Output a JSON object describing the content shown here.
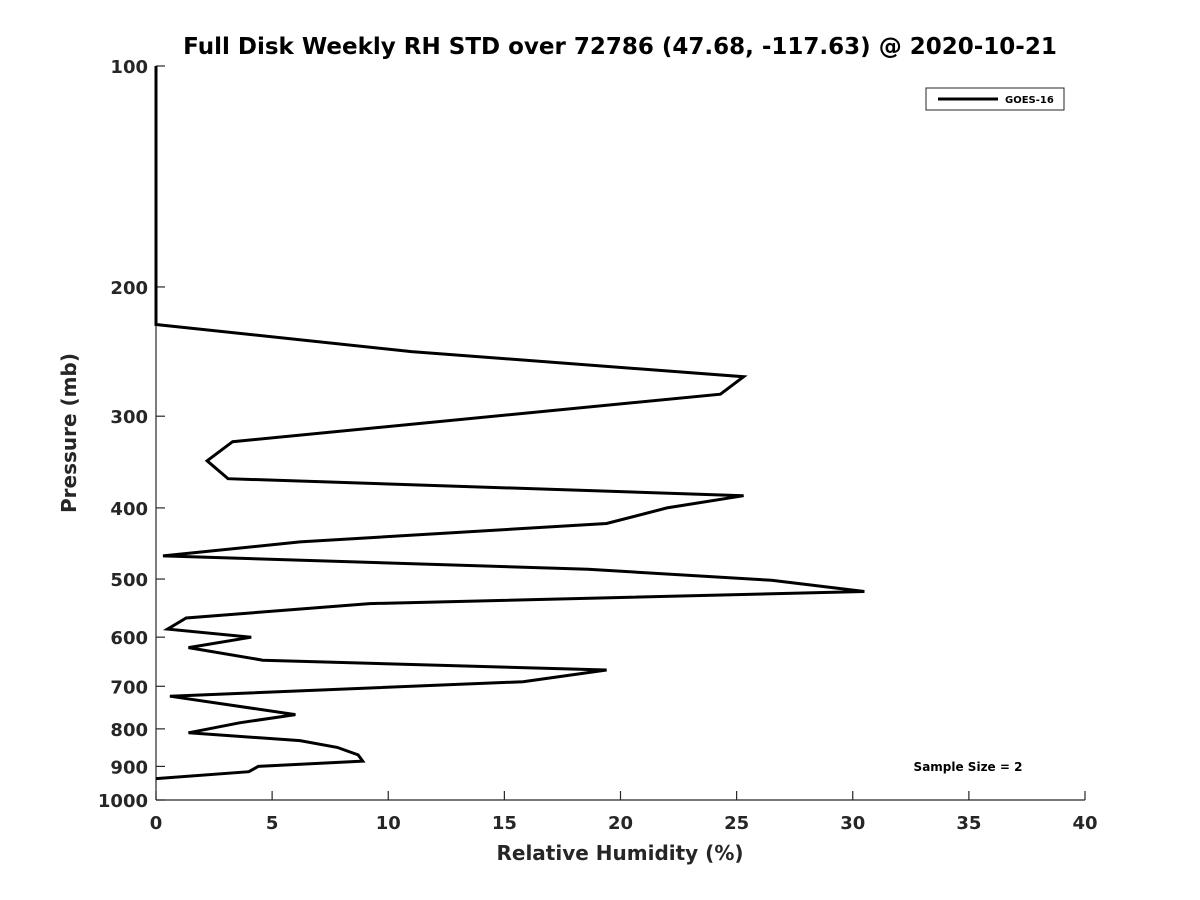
{
  "chart_data": {
    "type": "line",
    "title": "Full Disk Weekly RH STD over 72786 (47.68, -117.63) @ 2020-10-21",
    "xlabel": "Relative Humidity (%)",
    "ylabel": "Pressure (mb)",
    "xlim": [
      0,
      40
    ],
    "ylim": [
      100,
      1000
    ],
    "yscale": "log",
    "y_reversed": true,
    "x_ticks": [
      0,
      5,
      10,
      15,
      20,
      25,
      30,
      35,
      40
    ],
    "y_ticks": [
      100,
      200,
      300,
      400,
      500,
      600,
      700,
      800,
      900,
      1000
    ],
    "grid": false,
    "legend_position": "top-right",
    "annotation": "Sample Size = 2",
    "series": [
      {
        "name": "GOES-16",
        "color": "#000000",
        "points": [
          {
            "rh": 0.0,
            "p": 100
          },
          {
            "rh": 0.0,
            "p": 150
          },
          {
            "rh": 0.0,
            "p": 200
          },
          {
            "rh": 0.0,
            "p": 225
          },
          {
            "rh": 11.0,
            "p": 245
          },
          {
            "rh": 25.3,
            "p": 265
          },
          {
            "rh": 24.3,
            "p": 280
          },
          {
            "rh": 3.3,
            "p": 325
          },
          {
            "rh": 2.2,
            "p": 345
          },
          {
            "rh": 3.1,
            "p": 365
          },
          {
            "rh": 25.3,
            "p": 385
          },
          {
            "rh": 22.0,
            "p": 400
          },
          {
            "rh": 19.4,
            "p": 420
          },
          {
            "rh": 6.2,
            "p": 445
          },
          {
            "rh": 0.3,
            "p": 465
          },
          {
            "rh": 18.6,
            "p": 485
          },
          {
            "rh": 26.5,
            "p": 502
          },
          {
            "rh": 30.5,
            "p": 520
          },
          {
            "rh": 9.2,
            "p": 540
          },
          {
            "rh": 1.3,
            "p": 565
          },
          {
            "rh": 0.5,
            "p": 585
          },
          {
            "rh": 4.1,
            "p": 600
          },
          {
            "rh": 1.4,
            "p": 620
          },
          {
            "rh": 4.6,
            "p": 645
          },
          {
            "rh": 19.4,
            "p": 665
          },
          {
            "rh": 15.8,
            "p": 690
          },
          {
            "rh": 0.6,
            "p": 722
          },
          {
            "rh": 6.0,
            "p": 765
          },
          {
            "rh": 3.6,
            "p": 785
          },
          {
            "rh": 1.4,
            "p": 810
          },
          {
            "rh": 6.2,
            "p": 830
          },
          {
            "rh": 7.8,
            "p": 848
          },
          {
            "rh": 8.7,
            "p": 868
          },
          {
            "rh": 8.9,
            "p": 885
          },
          {
            "rh": 4.4,
            "p": 900
          },
          {
            "rh": 4.0,
            "p": 915
          },
          {
            "rh": 0.0,
            "p": 935
          }
        ]
      }
    ]
  }
}
